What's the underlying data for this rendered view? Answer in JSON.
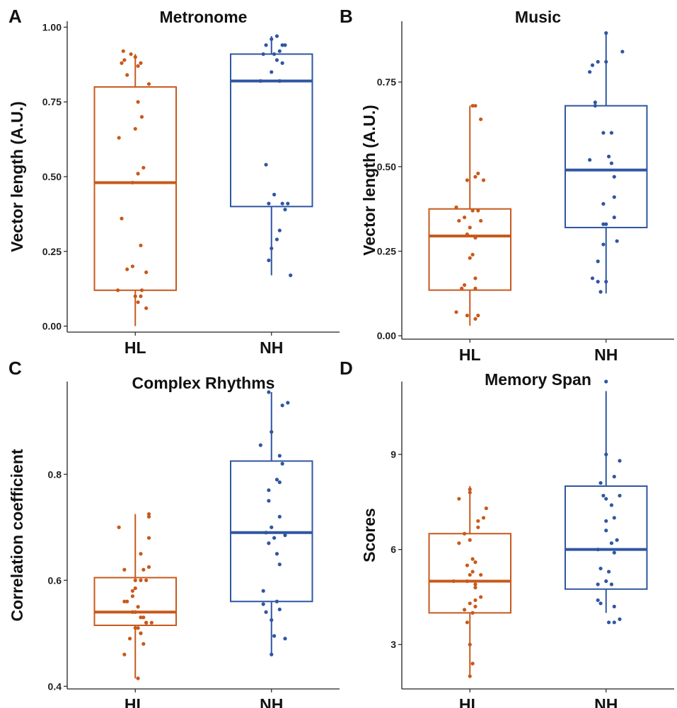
{
  "colors": {
    "HL": "#C8591B",
    "NH": "#2F56A2"
  },
  "chart_data": [
    {
      "type": "box",
      "panel": "A",
      "title": "Metronome",
      "ylabel": "Vector length (A.U.)",
      "categories": [
        "HL",
        "NH"
      ],
      "ylim": [
        -0.02,
        1.02
      ],
      "yticks": [
        0.0,
        0.25,
        0.5,
        0.75,
        1.0
      ],
      "ytick_labels": [
        "0.00",
        "0.25",
        "0.50",
        "0.75",
        "1.00"
      ],
      "boxes": [
        {
          "group": "HL",
          "min": 0.0,
          "q1": 0.12,
          "median": 0.48,
          "q3": 0.8,
          "max": 0.91
        },
        {
          "group": "NH",
          "min": 0.17,
          "q1": 0.4,
          "median": 0.82,
          "q3": 0.91,
          "max": 0.97
        }
      ],
      "points": [
        {
          "group": "HL",
          "jitter": [
            -0.22,
            -0.2,
            -0.25,
            -0.08,
            0.0,
            0.05,
            0.1,
            -0.15,
            0.25,
            0.05,
            0.12,
            0.0,
            -0.3,
            0.15,
            0.05,
            -0.05,
            -0.25,
            0.1,
            -0.15,
            -0.05,
            0.2,
            0.12,
            -0.32,
            0.1,
            0.0,
            0.05,
            0.2
          ],
          "values": [
            0.92,
            0.89,
            0.88,
            0.91,
            0.9,
            0.87,
            0.88,
            0.84,
            0.81,
            0.75,
            0.7,
            0.66,
            0.63,
            0.53,
            0.51,
            0.48,
            0.36,
            0.27,
            0.19,
            0.2,
            0.18,
            0.12,
            0.12,
            0.1,
            0.1,
            0.08,
            0.06
          ]
        },
        {
          "group": "NH",
          "jitter": [
            0.1,
            0.0,
            0.2,
            -0.1,
            0.25,
            0.15,
            0.05,
            -0.15,
            0.1,
            0.2,
            0.0,
            -0.2,
            0.15,
            -0.1,
            0.05,
            0.3,
            -0.05,
            0.2,
            0.25,
            0.15,
            0.1,
            0.0,
            -0.05,
            0.35
          ],
          "values": [
            0.97,
            0.96,
            0.94,
            0.94,
            0.94,
            0.92,
            0.91,
            0.91,
            0.89,
            0.88,
            0.85,
            0.82,
            0.82,
            0.54,
            0.44,
            0.41,
            0.41,
            0.41,
            0.39,
            0.32,
            0.29,
            0.26,
            0.22,
            0.17
          ]
        }
      ]
    },
    {
      "type": "box",
      "panel": "B",
      "title": "Music",
      "ylabel": "Vector length (A.U.)",
      "categories": [
        "HL",
        "NH"
      ],
      "ylim": [
        -0.01,
        0.93
      ],
      "yticks": [
        0.0,
        0.25,
        0.5,
        0.75
      ],
      "ytick_labels": [
        "0.00",
        "0.25",
        "0.50",
        "0.75"
      ],
      "boxes": [
        {
          "group": "HL",
          "min": 0.03,
          "q1": 0.135,
          "median": 0.295,
          "q3": 0.375,
          "max": 0.68
        },
        {
          "group": "NH",
          "min": 0.125,
          "q1": 0.32,
          "median": 0.49,
          "q3": 0.68,
          "max": 0.895
        }
      ],
      "points": [
        {
          "group": "HL",
          "jitter": [
            0.05,
            0.1,
            0.2,
            0.15,
            0.1,
            0.25,
            -0.05,
            -0.25,
            0.15,
            0.05,
            -0.1,
            0.2,
            -0.2,
            0.0,
            -0.05,
            0.1,
            0.05,
            0.0,
            0.1,
            -0.1,
            -0.15,
            0.1,
            -0.25,
            0.15,
            -0.05,
            0.1
          ],
          "values": [
            0.68,
            0.68,
            0.64,
            0.48,
            0.47,
            0.46,
            0.46,
            0.38,
            0.37,
            0.37,
            0.35,
            0.34,
            0.34,
            0.32,
            0.3,
            0.29,
            0.24,
            0.23,
            0.17,
            0.15,
            0.14,
            0.14,
            0.07,
            0.06,
            0.06,
            0.05
          ]
        },
        {
          "group": "NH",
          "jitter": [
            0.0,
            0.3,
            -0.15,
            0.0,
            -0.25,
            -0.3,
            -0.2,
            -0.2,
            -0.05,
            0.1,
            0.05,
            -0.3,
            0.1,
            0.15,
            -0.05,
            0.15,
            0.0,
            -0.05,
            0.2,
            -0.05,
            -0.15,
            -0.25,
            -0.15,
            0.0,
            -0.1,
            0.15
          ],
          "values": [
            0.895,
            0.84,
            0.81,
            0.81,
            0.8,
            0.78,
            0.69,
            0.68,
            0.6,
            0.6,
            0.53,
            0.52,
            0.51,
            0.47,
            0.39,
            0.35,
            0.33,
            0.33,
            0.28,
            0.27,
            0.22,
            0.17,
            0.16,
            0.16,
            0.13,
            0.41
          ]
        }
      ]
    },
    {
      "type": "box",
      "panel": "C",
      "title": "Complex Rhythms",
      "ylabel": "Correlation coefficient",
      "categories": [
        "HL",
        "NH"
      ],
      "ylim": [
        0.395,
        0.975
      ],
      "yticks": [
        0.4,
        0.6,
        0.8
      ],
      "ytick_labels": [
        "0.4",
        "0.6",
        "0.8"
      ],
      "boxes": [
        {
          "group": "HL",
          "min": 0.415,
          "q1": 0.515,
          "median": 0.54,
          "q3": 0.605,
          "max": 0.725
        },
        {
          "group": "NH",
          "min": 0.46,
          "q1": 0.56,
          "median": 0.69,
          "q3": 0.825,
          "max": 0.955
        }
      ],
      "points": [
        {
          "group": "HL",
          "jitter": [
            0.25,
            0.25,
            -0.3,
            0.25,
            0.1,
            0.25,
            0.15,
            -0.2,
            0.0,
            0.1,
            0.2,
            0.0,
            -0.15,
            -0.05,
            0.15,
            0.2,
            0.3,
            0.05,
            0.1,
            -0.1,
            -0.2,
            0.05,
            -0.2,
            0.05,
            0.1,
            0.0,
            0.15,
            -0.05,
            0.0,
            0.2,
            0.1,
            -0.05
          ],
          "values": [
            0.725,
            0.72,
            0.7,
            0.68,
            0.65,
            0.625,
            0.62,
            0.62,
            0.6,
            0.6,
            0.6,
            0.585,
            0.56,
            0.54,
            0.53,
            0.52,
            0.52,
            0.51,
            0.5,
            0.49,
            0.46,
            0.415,
            0.56,
            0.55,
            0.53,
            0.51,
            0.48,
            0.58,
            0.54,
            0.52,
            0.5,
            0.57
          ]
        },
        {
          "group": "NH",
          "jitter": [
            -0.05,
            0.3,
            0.2,
            0.0,
            -0.2,
            0.15,
            0.2,
            0.1,
            0.15,
            -0.05,
            -0.05,
            0.15,
            0.0,
            -0.1,
            0.25,
            0.05,
            -0.05,
            0.15,
            -0.15,
            0.1,
            0.15,
            -0.1,
            0.0,
            0.05,
            0.25,
            0.0,
            -0.15,
            0.1
          ],
          "values": [
            0.955,
            0.935,
            0.93,
            0.88,
            0.855,
            0.835,
            0.82,
            0.79,
            0.785,
            0.77,
            0.75,
            0.72,
            0.7,
            0.69,
            0.685,
            0.68,
            0.67,
            0.63,
            0.58,
            0.56,
            0.545,
            0.54,
            0.525,
            0.495,
            0.49,
            0.46,
            0.555,
            0.65
          ]
        }
      ]
    },
    {
      "type": "box",
      "panel": "D",
      "title": "Memory Span",
      "ylabel": "Scores",
      "categories": [
        "HL",
        "NH"
      ],
      "ylim": [
        1.6,
        11.3
      ],
      "yticks": [
        3,
        6,
        9
      ],
      "ytick_labels": [
        "3",
        "6",
        "9"
      ],
      "boxes": [
        {
          "group": "HL",
          "min": 2.0,
          "q1": 4.0,
          "median": 5.0,
          "q3": 6.5,
          "max": 8.0
        },
        {
          "group": "NH",
          "min": 4.0,
          "q1": 4.75,
          "median": 6.0,
          "q3": 8.0,
          "max": 11.0
        }
      ],
      "points": [
        {
          "group": "HL",
          "jitter": [
            0.0,
            0.0,
            -0.2,
            0.3,
            0.25,
            0.15,
            0.15,
            -0.1,
            0.0,
            -0.2,
            0.05,
            0.1,
            -0.05,
            0.05,
            0.0,
            -0.3,
            -0.05,
            0.1,
            0.2,
            0.1,
            0.0,
            0.1,
            0.05,
            -0.05,
            0.0,
            0.05,
            0.0,
            0.2,
            0.1,
            -0.1
          ],
          "values": [
            7.9,
            7.8,
            7.6,
            7.3,
            7.0,
            6.9,
            6.7,
            6.5,
            6.3,
            6.2,
            5.7,
            5.6,
            5.5,
            5.3,
            5.2,
            5.0,
            5.0,
            4.9,
            4.5,
            4.4,
            4.3,
            4.2,
            4.0,
            3.7,
            3.0,
            2.4,
            2.0,
            5.2,
            4.8,
            4.1
          ]
        },
        {
          "group": "NH",
          "jitter": [
            0.0,
            0.0,
            0.25,
            0.15,
            -0.1,
            0.25,
            -0.05,
            0.0,
            0.1,
            0.15,
            0.0,
            0.2,
            0.1,
            -0.15,
            0.15,
            -0.1,
            0.05,
            0.0,
            -0.15,
            0.1,
            -0.15,
            -0.1,
            0.15,
            0.25,
            0.15,
            0.05,
            0.0
          ],
          "values": [
            11.3,
            9.0,
            8.8,
            8.3,
            8.1,
            7.7,
            7.7,
            7.6,
            7.4,
            7.0,
            6.9,
            6.3,
            6.2,
            6.0,
            5.9,
            5.4,
            5.3,
            5.0,
            4.9,
            4.9,
            4.4,
            4.3,
            4.2,
            3.8,
            3.7,
            3.7,
            6.6
          ]
        }
      ]
    }
  ]
}
